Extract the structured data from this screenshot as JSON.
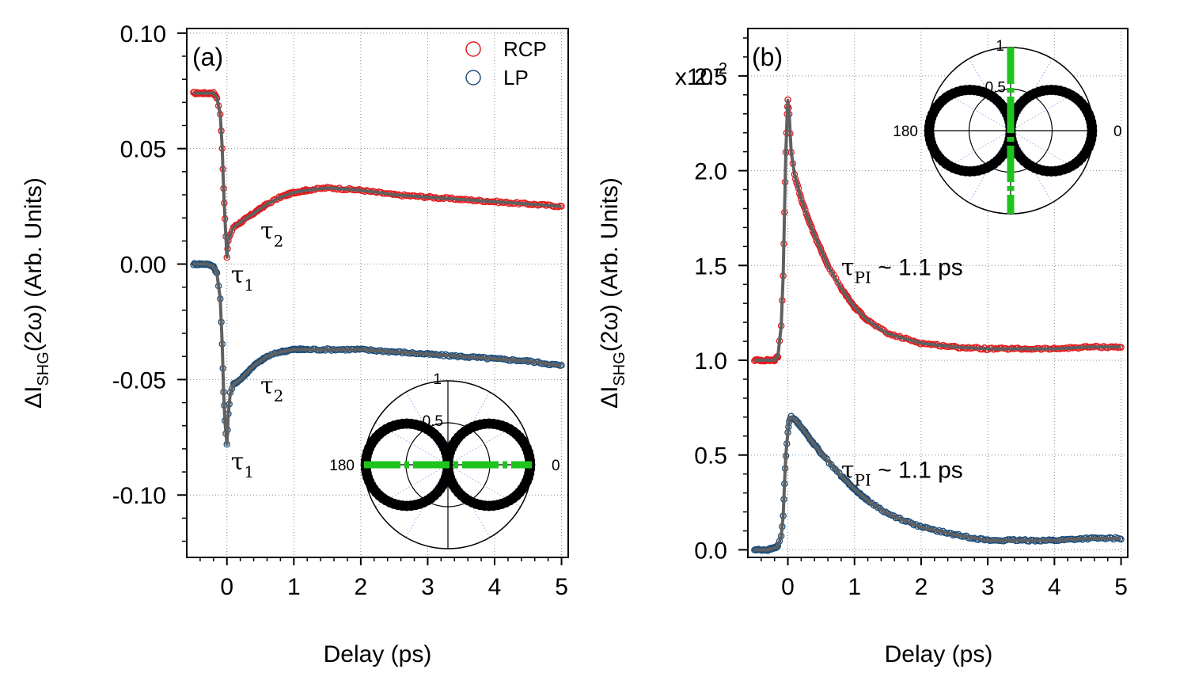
{
  "chart_data": [
    {
      "type": "scatter",
      "panel_label": "(a)",
      "xlabel": "Delay (ps)",
      "ylabel": "ΔI_SHG(2ω) (Arb. Units)",
      "ylabel_parts": {
        "pre": "ΔI",
        "sub": "SHG",
        "post": "(2ω) (Arb. Units)"
      },
      "xlim": [
        -0.6,
        5.1
      ],
      "ylim": [
        -0.127,
        0.102
      ],
      "xticks": [
        0,
        1,
        2,
        3,
        4,
        5
      ],
      "yticks": [
        0.1,
        0.05,
        0.0,
        -0.05,
        -0.1
      ],
      "ytick_labels": [
        "0.10",
        "0.05",
        "0.00",
        "-0.05",
        "-0.10"
      ],
      "grid": true,
      "legend": {
        "placement": "top-right",
        "entries": [
          {
            "name": "RCP",
            "color": "#e41a1c"
          },
          {
            "name": "LP",
            "color": "#1f4e79"
          }
        ]
      },
      "series": [
        {
          "name": "RCP",
          "color": "#e41a1c",
          "x": [
            -0.5,
            -0.4,
            -0.3,
            -0.2,
            -0.15,
            -0.1,
            -0.07,
            -0.05,
            -0.03,
            0.0,
            0.02,
            0.05,
            0.1,
            0.2,
            0.3,
            0.4,
            0.5,
            0.6,
            0.8,
            1.0,
            1.2,
            1.5,
            2.0,
            2.5,
            3.0,
            3.5,
            4.0,
            4.5,
            5.0
          ],
          "y": [
            0.074,
            0.074,
            0.074,
            0.074,
            0.072,
            0.065,
            0.05,
            0.033,
            0.02,
            0.003,
            0.01,
            0.013,
            0.016,
            0.018,
            0.02,
            0.022,
            0.024,
            0.026,
            0.029,
            0.031,
            0.032,
            0.033,
            0.032,
            0.03,
            0.029,
            0.028,
            0.027,
            0.026,
            0.025
          ]
        },
        {
          "name": "LP",
          "color": "#1f4e79",
          "x": [
            -0.5,
            -0.4,
            -0.3,
            -0.2,
            -0.15,
            -0.1,
            -0.07,
            -0.05,
            -0.03,
            0.0,
            0.02,
            0.05,
            0.1,
            0.2,
            0.3,
            0.4,
            0.5,
            0.6,
            0.8,
            1.0,
            1.2,
            1.5,
            2.0,
            2.5,
            3.0,
            3.5,
            4.0,
            4.5,
            5.0
          ],
          "y": [
            0.0,
            0.0,
            0.0,
            -0.001,
            -0.004,
            -0.015,
            -0.035,
            -0.055,
            -0.068,
            -0.078,
            -0.065,
            -0.056,
            -0.052,
            -0.05,
            -0.047,
            -0.044,
            -0.042,
            -0.04,
            -0.038,
            -0.037,
            -0.037,
            -0.037,
            -0.037,
            -0.038,
            -0.039,
            -0.04,
            -0.041,
            -0.042,
            -0.044
          ]
        }
      ],
      "annotations": [
        {
          "text": "τ",
          "sub": "2",
          "x": 0.5,
          "y": 0.011
        },
        {
          "text": "τ",
          "sub": "1",
          "x": 0.06,
          "y": -0.008
        },
        {
          "text": "τ",
          "sub": "2",
          "x": 0.5,
          "y": -0.056
        },
        {
          "text": "τ",
          "sub": "1",
          "x": 0.06,
          "y": -0.089
        }
      ],
      "inset": {
        "type": "polar",
        "angle_labels": [
          "180",
          "0"
        ],
        "radial_labels": [
          "0.5",
          "1"
        ],
        "lobe_orientation": "horizontal",
        "data_color": "#000000",
        "fit_color": "#1ec31e",
        "fit_orientation": "horizontal"
      }
    },
    {
      "type": "scatter",
      "panel_label": "(b)",
      "xlabel": "Delay (ps)",
      "ylabel": "ΔI_SHG(2ω) (Arb. Units)",
      "ylabel_parts": {
        "pre": "ΔI",
        "sub": "SHG",
        "post": "(2ω) (Arb. Units)"
      },
      "xlim": [
        -0.6,
        5.1
      ],
      "ylim": [
        -0.04,
        2.75
      ],
      "xticks": [
        0,
        1,
        2,
        3,
        4,
        5
      ],
      "yticks": [
        0.0,
        0.5,
        1.0,
        1.5,
        2.0,
        2.5
      ],
      "ytick_labels": [
        "0.0",
        "0.5",
        "1.0",
        "1.5",
        "2.0",
        "2.5"
      ],
      "yscale_note": {
        "base": "x10",
        "exp": "-2"
      },
      "grid": true,
      "series": [
        {
          "name": "RCP",
          "color": "#e41a1c",
          "x": [
            -0.5,
            -0.4,
            -0.3,
            -0.2,
            -0.15,
            -0.1,
            -0.07,
            -0.05,
            -0.03,
            -0.01,
            0.0,
            0.02,
            0.05,
            0.1,
            0.2,
            0.3,
            0.4,
            0.5,
            0.6,
            0.8,
            1.0,
            1.2,
            1.5,
            2.0,
            2.5,
            3.0,
            3.5,
            4.0,
            4.5,
            5.0
          ],
          "y": [
            1.0,
            1.0,
            1.0,
            1.0,
            1.02,
            1.18,
            1.45,
            1.78,
            2.1,
            2.3,
            2.37,
            2.3,
            2.1,
            1.98,
            1.85,
            1.75,
            1.66,
            1.58,
            1.5,
            1.38,
            1.28,
            1.21,
            1.14,
            1.09,
            1.07,
            1.06,
            1.06,
            1.06,
            1.07,
            1.07
          ]
        },
        {
          "name": "LP",
          "color": "#1f4e79",
          "x": [
            -0.5,
            -0.4,
            -0.3,
            -0.2,
            -0.15,
            -0.1,
            -0.07,
            -0.05,
            -0.03,
            0.0,
            0.02,
            0.05,
            0.1,
            0.2,
            0.3,
            0.5,
            0.8,
            1.0,
            1.2,
            1.5,
            2.0,
            2.5,
            3.0,
            3.5,
            4.0,
            4.5,
            5.0
          ],
          "y": [
            0.0,
            0.0,
            0.0,
            0.01,
            0.02,
            0.07,
            0.18,
            0.35,
            0.5,
            0.62,
            0.68,
            0.7,
            0.69,
            0.65,
            0.6,
            0.51,
            0.39,
            0.32,
            0.26,
            0.19,
            0.12,
            0.08,
            0.05,
            0.05,
            0.05,
            0.06,
            0.06
          ]
        }
      ],
      "annotations": [
        {
          "text": "τ",
          "sub": "PI",
          "tail": " ~ 1.1 ps",
          "x": 0.8,
          "y": 1.45
        },
        {
          "text": "τ",
          "sub": "PI",
          "tail": " ~ 1.1 ps",
          "x": 0.8,
          "y": 0.38
        }
      ],
      "inset": {
        "type": "polar",
        "angle_labels": [
          "180",
          "0"
        ],
        "radial_labels": [
          "0.5",
          "1"
        ],
        "lobe_orientation": "horizontal",
        "data_color": "#000000",
        "fit_color": "#1ec31e",
        "fit_orientation": "vertical"
      }
    }
  ]
}
